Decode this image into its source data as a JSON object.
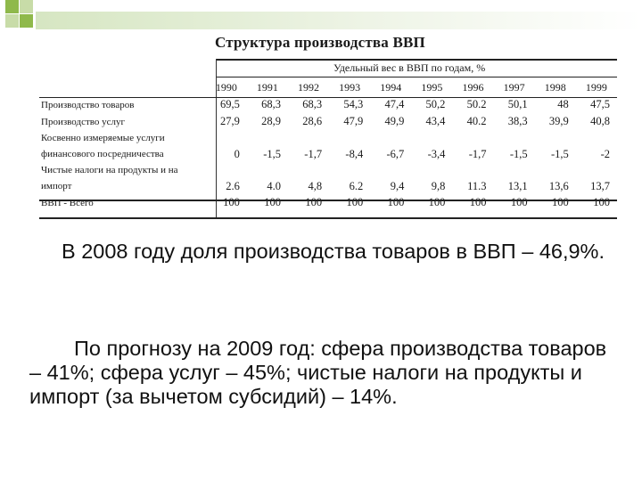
{
  "colors": {
    "square_green": "#8fb94b",
    "square_light": "#c8dca8",
    "band": "#d6e6c2"
  },
  "table": {
    "title": "Структура производства ВВП",
    "subheader": "Удельный вес в ВВП по годам, %",
    "years": [
      "1990",
      "1991",
      "1992",
      "1993",
      "1994",
      "1995",
      "1996",
      "1997",
      "1998",
      "1999"
    ],
    "rows": [
      {
        "label": "Производство товаров",
        "values": [
          "69,5",
          "68,3",
          "68,3",
          "54,3",
          "47,4",
          "50,2",
          "50.2",
          "50,1",
          "48",
          "47,5"
        ]
      },
      {
        "label": "Производство услуг",
        "values": [
          "27,9",
          "28,9",
          "28,6",
          "47,9",
          "49,9",
          "43,4",
          "40.2",
          "38,3",
          "39,9",
          "40,8"
        ]
      },
      {
        "label": "Косвенно измеряемые услуги",
        "values": [
          "",
          "",
          "",
          "",
          "",
          "",
          "",
          "",
          "",
          ""
        ]
      },
      {
        "label": "финансового посредничества",
        "values": [
          "0",
          "-1,5",
          "-1,7",
          "-8,4",
          "-6,7",
          "-3,4",
          "-1,7",
          "-1,5",
          "-1,5",
          "-2"
        ]
      },
      {
        "label": "Чистые налоги на продукты и на",
        "values": [
          "",
          "",
          "",
          "",
          "",
          "",
          "",
          "",
          "",
          ""
        ]
      },
      {
        "label": "импорт",
        "values": [
          "2.6",
          "4.0",
          "4,8",
          "6.2",
          "9,4",
          "9,8",
          "11.3",
          "13,1",
          "13,6",
          "13,7"
        ]
      },
      {
        "label": "ВВП - Всего",
        "values": [
          "100",
          "100",
          "100",
          "100",
          "100",
          "100",
          "100",
          "100",
          "100",
          "100"
        ]
      }
    ]
  },
  "paragraphs": [
    "В 2008 году доля производства товаров в ВВП – 46,9%.",
    "По прогнозу на 2009 год: сфера производства товаров – 41%; сфера услуг – 45%; чистые налоги на продукты и импорт (за вычетом субсидий) – 14%."
  ]
}
